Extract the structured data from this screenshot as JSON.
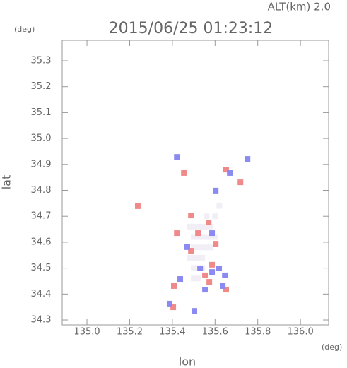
{
  "chart_data": {
    "type": "scatter",
    "title": "2015/06/25 01:23:12",
    "annotation": "ALT(km) 2.0",
    "y_unit": "(deg)",
    "x_unit": "(deg)",
    "xlabel": "lon",
    "ylabel": "lat",
    "xlim": [
      134.884,
      136.132
    ],
    "ylim": [
      34.281,
      35.379
    ],
    "xticks": [
      {
        "value": 135,
        "label": "135.0"
      },
      135.2,
      135.4,
      135.6,
      135.8,
      {
        "value": 136,
        "label": "136.0"
      }
    ],
    "yticks": [
      34.3,
      34.4,
      34.5,
      34.6,
      34.7,
      34.8,
      34.9,
      {
        "value": 35,
        "label": "35.0"
      },
      35.1,
      35.2,
      35.3
    ],
    "series": [
      {
        "color": "#f1eef6",
        "x": [
          135.48,
          135.5,
          135.52,
          135.54,
          135.56,
          135.58,
          135.5,
          135.52,
          135.54,
          135.56,
          135.58,
          135.6,
          135.5,
          135.52,
          135.54,
          135.56,
          135.58,
          135.48,
          135.5,
          135.52,
          135.54,
          135.5,
          135.52,
          135.54,
          135.5,
          135.52,
          135.56,
          135.6,
          135.62
        ],
        "y": [
          34.66,
          34.66,
          34.66,
          34.66,
          34.66,
          34.66,
          34.62,
          34.62,
          34.62,
          34.62,
          34.62,
          34.62,
          34.58,
          34.58,
          34.58,
          34.58,
          34.58,
          34.54,
          34.54,
          34.54,
          34.54,
          34.5,
          34.5,
          34.5,
          34.46,
          34.46,
          34.7,
          34.7,
          34.74
        ]
      },
      {
        "color": "#f08a8a",
        "x": [
          135.573,
          135.553,
          135.586,
          135.407,
          135.52,
          135.57,
          135.487,
          135.454,
          135.652,
          135.719,
          135.487,
          135.421,
          135.652,
          135.404,
          135.603,
          135.238
        ],
        "y": [
          34.447,
          34.472,
          34.513,
          34.431,
          34.635,
          34.676,
          34.703,
          34.867,
          34.88,
          34.831,
          34.567,
          34.635,
          34.417,
          34.349,
          34.594,
          34.739
        ]
      },
      {
        "color": "#8a8af0",
        "x": [
          135.586,
          135.619,
          135.503,
          135.437,
          135.553,
          135.752,
          135.669,
          135.603,
          135.47,
          135.586,
          135.636,
          135.421,
          135.53,
          135.646,
          135.387
        ],
        "y": [
          34.485,
          34.499,
          34.335,
          34.458,
          34.417,
          34.921,
          34.867,
          34.799,
          34.581,
          34.635,
          34.431,
          34.929,
          34.499,
          34.472,
          34.363
        ]
      }
    ]
  }
}
